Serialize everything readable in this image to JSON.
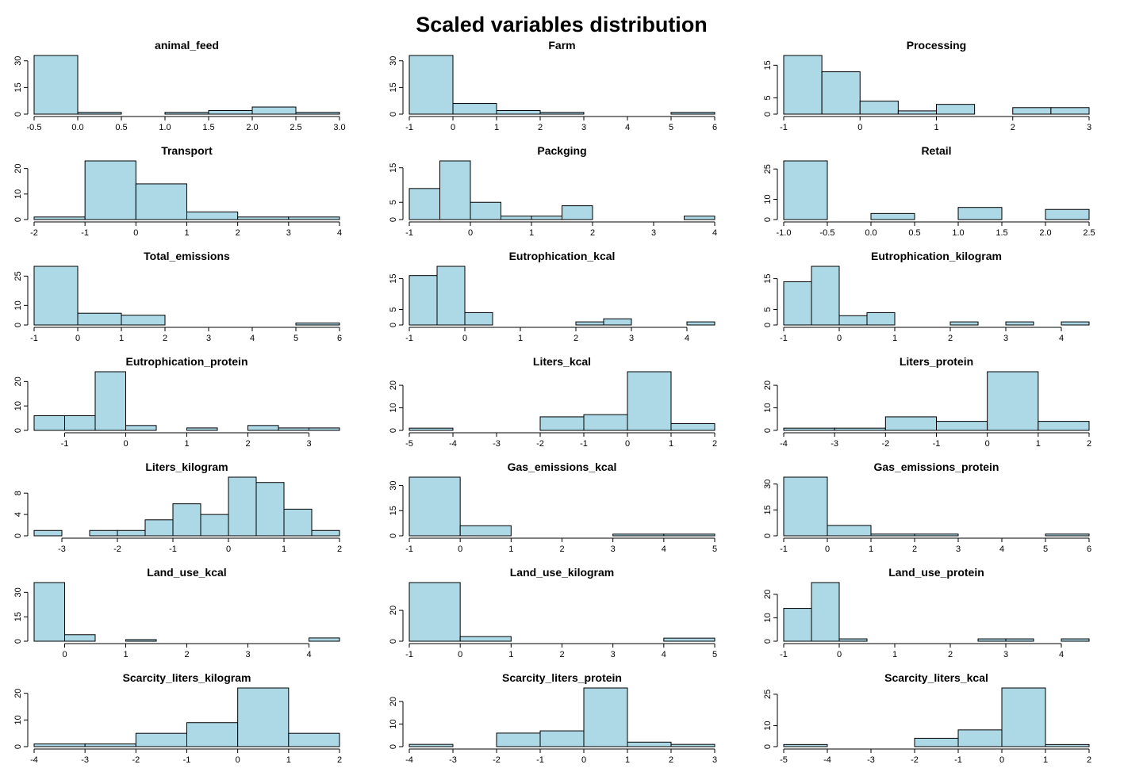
{
  "figure_title": "Scaled variables distribution",
  "colors": {
    "bar_fill": "#add8e6",
    "bar_stroke": "#000000",
    "background": "#ffffff"
  },
  "chart_data": [
    {
      "type": "bar",
      "title": "animal_feed",
      "breaks": [
        -0.5,
        0,
        0.5,
        1,
        1.5,
        2,
        2.5,
        3
      ],
      "values": [
        33,
        1,
        0,
        1,
        2,
        4,
        1
      ],
      "x_ticks": [
        "-0.5",
        "0.0",
        "0.5",
        "1.0",
        "1.5",
        "2.0",
        "2.5",
        "3.0"
      ],
      "y_ticks": [
        "0",
        "15",
        "30"
      ],
      "ylim": [
        0,
        33
      ]
    },
    {
      "type": "bar",
      "title": "Farm",
      "breaks": [
        -1,
        0,
        1,
        2,
        3,
        4,
        5,
        6
      ],
      "values": [
        33,
        6,
        2,
        1,
        0,
        0,
        1
      ],
      "x_ticks": [
        "-1",
        "0",
        "1",
        "2",
        "3",
        "4",
        "5",
        "6"
      ],
      "y_ticks": [
        "0",
        "15",
        "30"
      ],
      "ylim": [
        0,
        33
      ]
    },
    {
      "type": "bar",
      "title": "Processing",
      "breaks": [
        -1,
        -0.5,
        0,
        0.5,
        1,
        1.5,
        2,
        2.5,
        3
      ],
      "values": [
        18,
        13,
        4,
        1,
        3,
        0,
        2,
        2
      ],
      "x_ticks": [
        "-1",
        "0",
        "1",
        "2",
        "3"
      ],
      "y_ticks": [
        "0",
        "5",
        "15"
      ],
      "ylim": [
        0,
        18
      ]
    },
    {
      "type": "bar",
      "title": "Transport",
      "breaks": [
        -2,
        -1,
        0,
        1,
        2,
        3,
        4
      ],
      "values": [
        1,
        23,
        14,
        3,
        1,
        1
      ],
      "x_ticks": [
        "-2",
        "-1",
        "0",
        "1",
        "2",
        "3",
        "4"
      ],
      "y_ticks": [
        "0",
        "10",
        "20"
      ],
      "ylim": [
        0,
        23
      ]
    },
    {
      "type": "bar",
      "title": "Packging",
      "breaks": [
        -1,
        -0.5,
        0,
        0.5,
        1,
        1.5,
        2,
        2.5,
        3,
        3.5,
        4
      ],
      "values": [
        9,
        17,
        5,
        1,
        1,
        4,
        0,
        0,
        0,
        1
      ],
      "x_ticks": [
        "-1",
        "0",
        "1",
        "2",
        "3",
        "4"
      ],
      "y_ticks": [
        "0",
        "5",
        "15"
      ],
      "ylim": [
        0,
        17
      ]
    },
    {
      "type": "bar",
      "title": "Retail",
      "breaks": [
        -1,
        -0.5,
        0,
        0.5,
        1,
        1.5,
        2,
        2.5
      ],
      "values": [
        29,
        0,
        3,
        0,
        6,
        0,
        5
      ],
      "x_ticks": [
        "-1.0",
        "-0.5",
        "0.0",
        "0.5",
        "1.0",
        "1.5",
        "2.0",
        "2.5"
      ],
      "y_ticks": [
        "0",
        "10",
        "25"
      ],
      "ylim": [
        0,
        29
      ]
    },
    {
      "type": "bar",
      "title": "Total_emissions",
      "breaks": [
        -1,
        0,
        1,
        2,
        3,
        4,
        5,
        6
      ],
      "values": [
        30,
        6,
        5,
        0,
        0,
        0,
        1
      ],
      "x_ticks": [
        "-1",
        "0",
        "1",
        "2",
        "3",
        "4",
        "5",
        "6"
      ],
      "y_ticks": [
        "0",
        "10",
        "25"
      ],
      "ylim": [
        0,
        30
      ]
    },
    {
      "type": "bar",
      "title": "Eutrophication_kcal",
      "breaks": [
        -1,
        -0.5,
        0,
        0.5,
        1,
        1.5,
        2,
        2.5,
        3,
        3.5,
        4,
        4.5
      ],
      "values": [
        16,
        19,
        4,
        0,
        0,
        0,
        1,
        2,
        0,
        0,
        1
      ],
      "x_ticks": [
        "-1",
        "0",
        "1",
        "2",
        "3",
        "4"
      ],
      "y_ticks": [
        "0",
        "5",
        "15"
      ],
      "ylim": [
        0,
        19
      ]
    },
    {
      "type": "bar",
      "title": "Eutrophication_kilogram",
      "breaks": [
        -1,
        -0.5,
        0,
        0.5,
        1,
        1.5,
        2,
        2.5,
        3,
        3.5,
        4,
        4.5
      ],
      "values": [
        14,
        19,
        3,
        4,
        0,
        0,
        1,
        0,
        1,
        0,
        1
      ],
      "x_ticks": [
        "-1",
        "0",
        "1",
        "2",
        "3",
        "4"
      ],
      "y_ticks": [
        "0",
        "5",
        "15"
      ],
      "ylim": [
        0,
        19
      ]
    },
    {
      "type": "bar",
      "title": "Eutrophication_protein",
      "breaks": [
        -1.5,
        -1,
        -0.5,
        0,
        0.5,
        1,
        1.5,
        2,
        2.5,
        3,
        3.5
      ],
      "values": [
        6,
        6,
        24,
        2,
        0,
        1,
        0,
        2,
        1,
        1
      ],
      "x_ticks": [
        "-1",
        "0",
        "1",
        "2",
        "3"
      ],
      "y_ticks": [
        "0",
        "10",
        "20"
      ],
      "ylim": [
        0,
        24
      ]
    },
    {
      "type": "bar",
      "title": "Liters_kcal",
      "breaks": [
        -5,
        -4,
        -3,
        -2,
        -1,
        0,
        1,
        2
      ],
      "values": [
        1,
        0,
        0,
        6,
        7,
        26,
        3
      ],
      "x_ticks": [
        "-5",
        "-4",
        "-3",
        "-2",
        "-1",
        "0",
        "1",
        "2"
      ],
      "y_ticks": [
        "0",
        "10",
        "20"
      ],
      "ylim": [
        0,
        26
      ]
    },
    {
      "type": "bar",
      "title": "Liters_protein",
      "breaks": [
        -4,
        -3,
        -2,
        -1,
        0,
        1,
        2
      ],
      "values": [
        1,
        1,
        6,
        4,
        26,
        4
      ],
      "x_ticks": [
        "-4",
        "-3",
        "-2",
        "-1",
        "0",
        "1",
        "2"
      ],
      "y_ticks": [
        "0",
        "10",
        "20"
      ],
      "ylim": [
        0,
        26
      ]
    },
    {
      "type": "bar",
      "title": "Liters_kilogram",
      "breaks": [
        -3.5,
        -3,
        -2.5,
        -2,
        -1.5,
        -1,
        -0.5,
        0,
        0.5,
        1,
        1.5,
        2
      ],
      "values": [
        1,
        0,
        1,
        1,
        3,
        6,
        4,
        11,
        10,
        5,
        1
      ],
      "x_ticks": [
        "-3",
        "-2",
        "-1",
        "0",
        "1",
        "2"
      ],
      "y_ticks": [
        "0",
        "4",
        "8"
      ],
      "ylim": [
        0,
        11
      ]
    },
    {
      "type": "bar",
      "title": "Gas_emissions_kcal",
      "breaks": [
        -1,
        0,
        1,
        2,
        3,
        4,
        5
      ],
      "values": [
        35,
        6,
        0,
        0,
        1,
        1
      ],
      "x_ticks": [
        "-1",
        "0",
        "1",
        "2",
        "3",
        "4",
        "5"
      ],
      "y_ticks": [
        "0",
        "15",
        "30"
      ],
      "ylim": [
        0,
        35
      ]
    },
    {
      "type": "bar",
      "title": "Gas_emissions_protein",
      "breaks": [
        -1,
        0,
        1,
        2,
        3,
        4,
        5,
        6
      ],
      "values": [
        34,
        6,
        1,
        1,
        0,
        0,
        1
      ],
      "x_ticks": [
        "-1",
        "0",
        "1",
        "2",
        "3",
        "4",
        "5",
        "6"
      ],
      "y_ticks": [
        "0",
        "15",
        "30"
      ],
      "ylim": [
        0,
        34
      ]
    },
    {
      "type": "bar",
      "title": "Land_use_kcal",
      "breaks": [
        -0.5,
        0,
        0.5,
        1,
        1.5,
        2,
        2.5,
        3,
        3.5,
        4,
        4.5
      ],
      "values": [
        36,
        4,
        0,
        1,
        0,
        0,
        0,
        0,
        0,
        2
      ],
      "x_ticks": [
        "0",
        "1",
        "2",
        "3",
        "4"
      ],
      "y_ticks": [
        "0",
        "15",
        "30"
      ],
      "ylim": [
        0,
        36
      ]
    },
    {
      "type": "bar",
      "title": "Land_use_kilogram",
      "breaks": [
        -1,
        0,
        1,
        2,
        3,
        4,
        5
      ],
      "values": [
        38,
        3,
        0,
        0,
        0,
        2
      ],
      "x_ticks": [
        "-1",
        "0",
        "1",
        "2",
        "3",
        "4",
        "5"
      ],
      "y_ticks": [
        "0",
        "20"
      ],
      "ylim": [
        0,
        38
      ]
    },
    {
      "type": "bar",
      "title": "Land_use_protein",
      "breaks": [
        -1,
        -0.5,
        0,
        0.5,
        1,
        1.5,
        2,
        2.5,
        3,
        3.5,
        4,
        4.5
      ],
      "values": [
        14,
        25,
        1,
        0,
        0,
        0,
        0,
        1,
        1,
        0,
        1
      ],
      "x_ticks": [
        "-1",
        "0",
        "1",
        "2",
        "3",
        "4"
      ],
      "y_ticks": [
        "0",
        "10",
        "20"
      ],
      "ylim": [
        0,
        25
      ]
    },
    {
      "type": "bar",
      "title": "Scarcity_liters_kilogram",
      "breaks": [
        -4,
        -3,
        -2,
        -1,
        0,
        1,
        2
      ],
      "values": [
        1,
        1,
        5,
        9,
        22,
        5
      ],
      "x_ticks": [
        "-4",
        "-3",
        "-2",
        "-1",
        "0",
        "1",
        "2"
      ],
      "y_ticks": [
        "0",
        "10",
        "20"
      ],
      "ylim": [
        0,
        22
      ]
    },
    {
      "type": "bar",
      "title": "Scarcity_liters_protein",
      "breaks": [
        -4,
        -3,
        -2,
        -1,
        0,
        1,
        2,
        3
      ],
      "values": [
        1,
        0,
        6,
        7,
        26,
        2,
        1
      ],
      "x_ticks": [
        "-4",
        "-3",
        "-2",
        "-1",
        "0",
        "1",
        "2",
        "3"
      ],
      "y_ticks": [
        "0",
        "10",
        "20"
      ],
      "ylim": [
        0,
        26
      ]
    },
    {
      "type": "bar",
      "title": "Scarcity_liters_kcal",
      "breaks": [
        -5,
        -4,
        -3,
        -2,
        -1,
        0,
        1,
        2
      ],
      "values": [
        1,
        0,
        0,
        4,
        8,
        28,
        1
      ],
      "x_ticks": [
        "-5",
        "-4",
        "-3",
        "-2",
        "-1",
        "0",
        "1",
        "2"
      ],
      "y_ticks": [
        "0",
        "10",
        "25"
      ],
      "ylim": [
        0,
        28
      ]
    }
  ]
}
